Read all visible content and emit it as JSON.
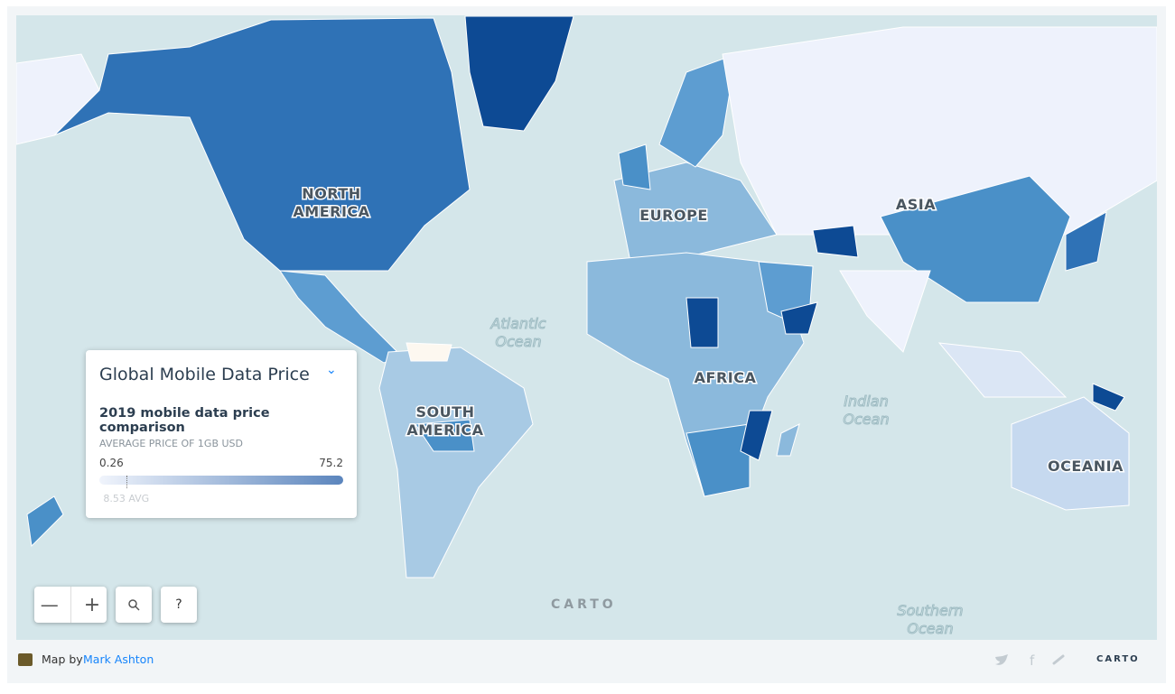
{
  "legend": {
    "title": "Global Mobile Data Price",
    "description": "2019 mobile data price comparison",
    "scale_title": "AVERAGE PRICE OF 1GB USD",
    "min": 0.26,
    "max": 75.2,
    "avg": {
      "value": 8.53,
      "label": "8.53 AVG"
    }
  },
  "map_labels": [
    {
      "lines": [
        "NORTH",
        "AMERICA"
      ]
    },
    {
      "lines": [
        "SOUTH",
        "AMERICA"
      ]
    },
    {
      "lines": [
        "EUROPE"
      ]
    },
    {
      "lines": [
        "AFRICA"
      ]
    },
    {
      "lines": [
        "ASIA"
      ]
    },
    {
      "lines": [
        "OCEANIA"
      ]
    },
    {
      "lines": [
        "Atlantic",
        "Ocean"
      ]
    },
    {
      "lines": [
        "Indian",
        "Ocean"
      ]
    },
    {
      "lines": [
        "Southern",
        "Ocean"
      ]
    }
  ],
  "controls": {
    "help": "?"
  },
  "watermark": "CARTO",
  "footer": {
    "prefix": "Map by",
    "author": "Mark Ashton",
    "logo": "CARTO"
  }
}
